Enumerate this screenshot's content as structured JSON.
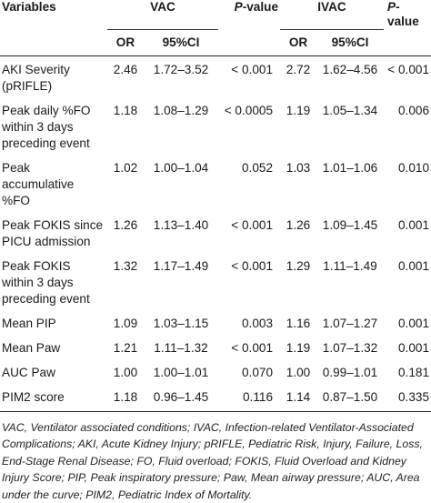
{
  "header": {
    "variables": "Variables",
    "group1": "VAC",
    "group2": "IVAC",
    "p_value_italic": "P",
    "p_value_suffix": "-value",
    "or": "OR",
    "ci": "95%CI"
  },
  "rows": [
    {
      "variable": "AKI Severity (pRIFLE)",
      "or1": "2.46",
      "ci1": "1.72–3.52",
      "p1": "< 0.001",
      "or2": "2.72",
      "ci2": "1.62–4.56",
      "p2": "< 0.001"
    },
    {
      "variable": "Peak daily %FO within 3 days preceding event",
      "or1": "1.18",
      "ci1": "1.08–1.29",
      "p1": "< 0.0005",
      "or2": "1.19",
      "ci2": "1.05–1.34",
      "p2": "0.006"
    },
    {
      "variable": "Peak accumulative %FO",
      "or1": "1.02",
      "ci1": "1.00–1.04",
      "p1": "0.052",
      "or2": "1.03",
      "ci2": "1.01–1.06",
      "p2": "0.010"
    },
    {
      "variable": "Peak FOKIS since PICU admission",
      "or1": "1.26",
      "ci1": "1.13–1.40",
      "p1": "< 0.001",
      "or2": "1.26",
      "ci2": "1.09–1.45",
      "p2": "0.001"
    },
    {
      "variable": "Peak FOKIS within 3 days preceding event",
      "or1": "1.32",
      "ci1": "1.17–1.49",
      "p1": "< 0.001",
      "or2": "1.29",
      "ci2": "1.11–1.49",
      "p2": "0.001"
    },
    {
      "variable": "Mean PIP",
      "or1": "1.09",
      "ci1": "1.03–1.15",
      "p1": "0.003",
      "or2": "1.16",
      "ci2": "1.07–1.27",
      "p2": "0.001"
    },
    {
      "variable": "Mean Paw",
      "or1": "1.21",
      "ci1": "1.11–1.32",
      "p1": "< 0.001",
      "or2": "1.19",
      "ci2": "1.07–1.32",
      "p2": "0.001"
    },
    {
      "variable": "AUC Paw",
      "or1": "1.00",
      "ci1": "1.00–1.01",
      "p1": "0.070",
      "or2": "1.00",
      "ci2": "0.99–1.01",
      "p2": "0.181"
    },
    {
      "variable": "PIM2 score",
      "or1": "1.18",
      "ci1": "0.96–1.45",
      "p1": "0.116",
      "or2": "1.14",
      "ci2": "0.87–1.50",
      "p2": "0.335"
    }
  ],
  "footnote": "VAC, Ventilator associated conditions; IVAC, Infection-related Ventilator-Associated Complications; AKI, Acute Kidney Injury; pRIFLE, Pediatric Risk, Injury, Failure, Loss, End-Stage Renal Disease; FO, Fluid overload; FOKIS, Fluid Overload and Kidney Injury Score; PIP, Peak inspiratory pressure; Paw, Mean airway pressure; AUC, Area under the curve; PIM2, Pediatric Index of Mortality."
}
